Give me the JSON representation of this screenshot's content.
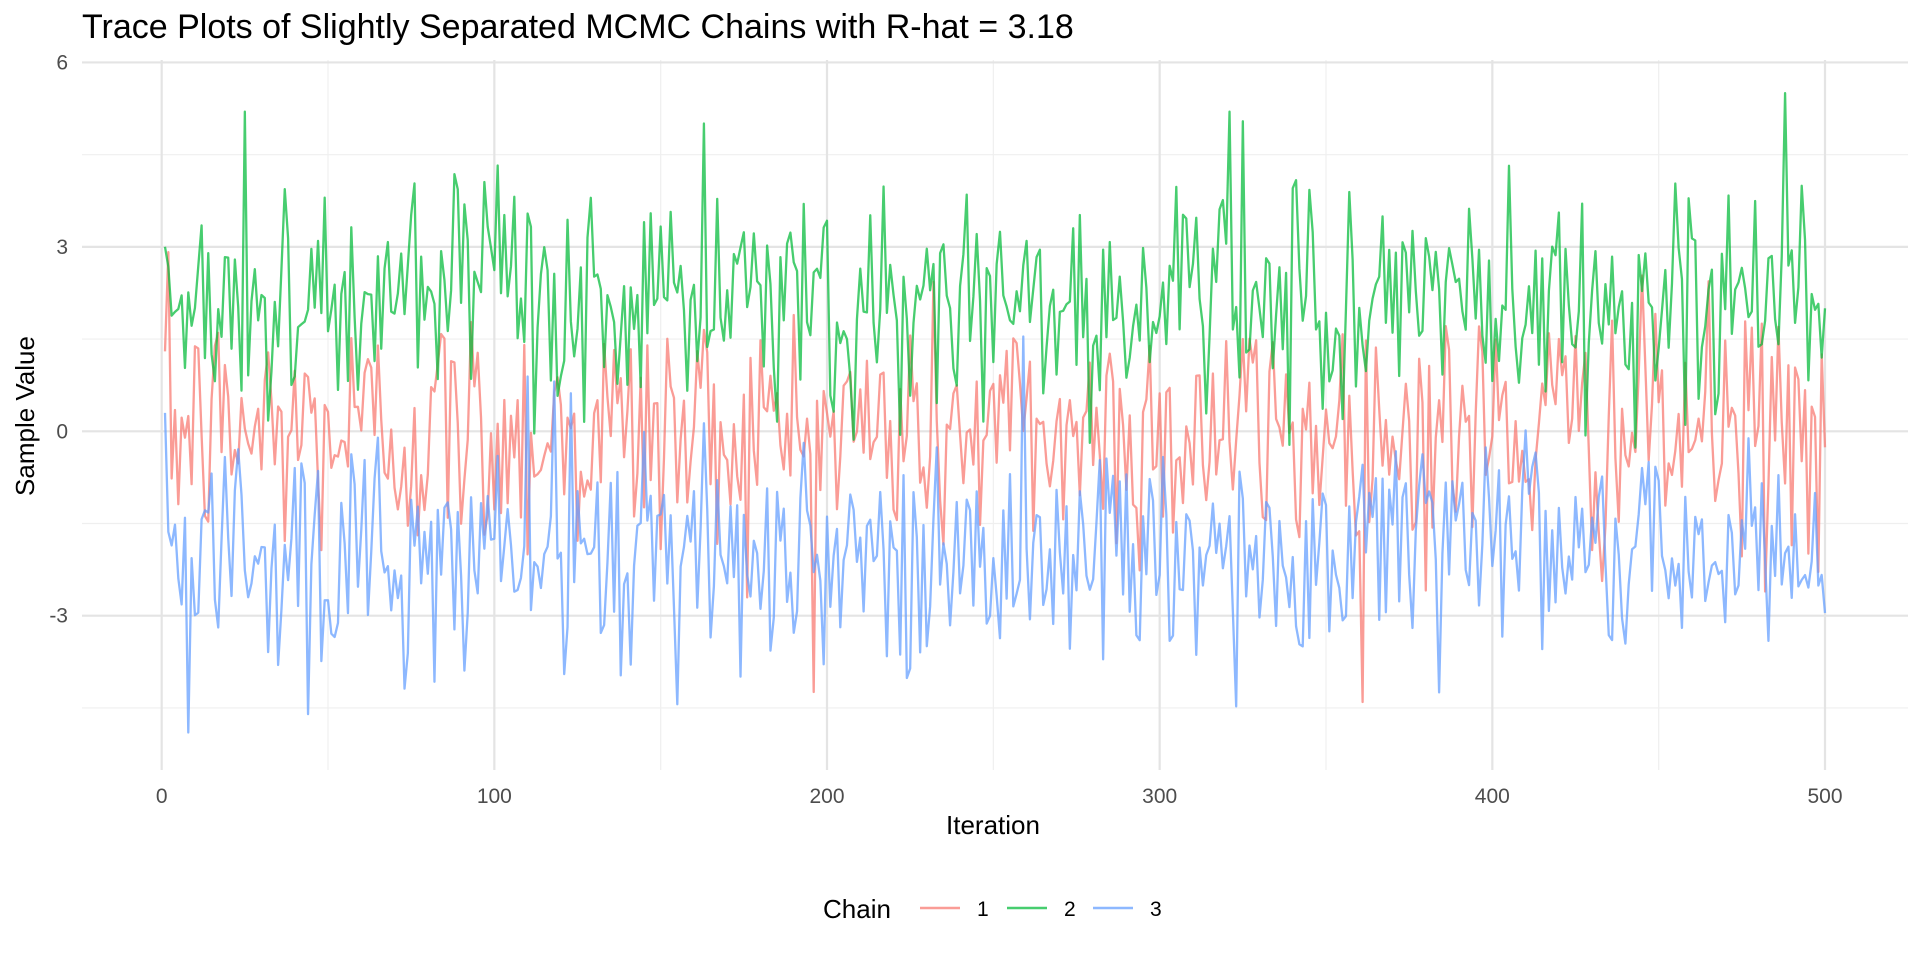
{
  "chart_data": {
    "type": "line",
    "title": "Trace Plots of Slightly Separated MCMC Chains with R-hat = 3.18",
    "xlabel": "Iteration",
    "ylabel": "Sample Value",
    "xlim": [
      -23.95,
      524.95
    ],
    "ylim": [
      -5.51,
      6.04
    ],
    "x_ticks": [
      0,
      100,
      200,
      300,
      400,
      500
    ],
    "x_tick_labels": [
      "0",
      "100",
      "200",
      "300",
      "400",
      "500"
    ],
    "y_ticks": [
      -3,
      0,
      3,
      6
    ],
    "y_tick_labels": [
      "-3",
      "0",
      "3",
      "6"
    ],
    "grid": true,
    "legend": {
      "title": "Chain",
      "position": "bottom",
      "entries": [
        "1",
        "2",
        "3"
      ]
    },
    "series": [
      {
        "name": "1",
        "color": "#F8766D",
        "offset": 0.0,
        "spread": 1.05,
        "start": 1.3
      },
      {
        "name": "2",
        "color": "#00BA38",
        "offset": 2.1,
        "spread": 0.95,
        "start": 3.0
      },
      {
        "name": "3",
        "color": "#619CFF",
        "offset": -2.0,
        "spread": 0.95,
        "start": 0.3
      }
    ],
    "x": {
      "from": 1,
      "to": 500,
      "step": 1
    },
    "notes_peaks": [
      {
        "series": "2",
        "x": 25,
        "y": 5.2
      },
      {
        "series": "2",
        "x": 321,
        "y": 5.2
      },
      {
        "series": "2",
        "x": 488,
        "y": 5.5
      },
      {
        "series": "3",
        "x": 8,
        "y": -4.9
      },
      {
        "series": "3",
        "x": 44,
        "y": -4.6
      }
    ]
  }
}
